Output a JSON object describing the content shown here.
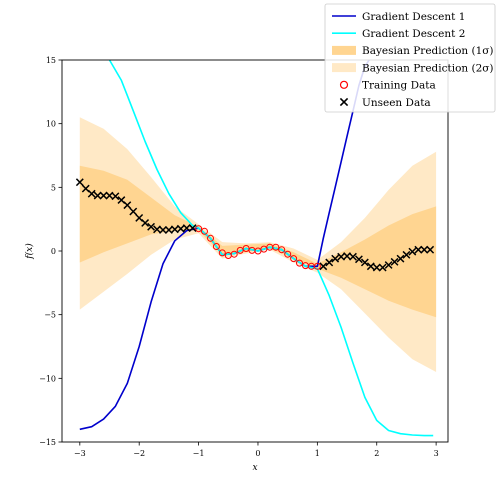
{
  "chart_data": {
    "type": "line",
    "title": "",
    "xlabel": "x",
    "ylabel": "f(x)",
    "xlim": [
      -3.3,
      3.2
    ],
    "ylim": [
      -15,
      15
    ],
    "xticks": [
      -3,
      -2,
      -1,
      0,
      1,
      2,
      3
    ],
    "xtick_labels": [
      "−3",
      "−2",
      "−1",
      "0",
      "1",
      "2",
      "3"
    ],
    "yticks": [
      -15,
      -10,
      -5,
      0,
      5,
      10,
      15
    ],
    "ytick_labels": [
      "−15",
      "−10",
      "−5",
      "0",
      "5",
      "10",
      "15"
    ],
    "grid": false,
    "legend": {
      "position": "top-right",
      "entries": [
        {
          "label": "Gradient Descent 1",
          "kind": "line",
          "color": "#0000cc"
        },
        {
          "label": "Gradient Descent 2",
          "kind": "line",
          "color": "#00ffff"
        },
        {
          "label": "Bayesian Prediction (1σ)",
          "kind": "patch",
          "color": "#ffd591"
        },
        {
          "label": "Bayesian Prediction (2σ)",
          "kind": "patch",
          "color": "#ffe9c6"
        },
        {
          "label": "Training Data",
          "kind": "circle",
          "color": "#ff0000"
        },
        {
          "label": "Unseen Data",
          "kind": "cross",
          "color": "#000000"
        }
      ]
    },
    "series": [
      {
        "name": "Gradient Descent 1",
        "color": "#0000cc",
        "x": [
          -3.0,
          -2.8,
          -2.6,
          -2.4,
          -2.2,
          -2.0,
          -1.8,
          -1.6,
          -1.4,
          -1.2,
          -1.0,
          -0.8,
          -0.6,
          -0.4,
          -0.2,
          0.0,
          0.2,
          0.4,
          0.6,
          0.8,
          1.0,
          1.1,
          1.2,
          1.3,
          1.4,
          1.5,
          1.6,
          1.7,
          1.8,
          1.9
        ],
        "y": [
          -14.0,
          -13.8,
          -13.2,
          -12.2,
          -10.4,
          -7.5,
          -4.0,
          -1.0,
          0.8,
          1.6,
          1.8,
          1.0,
          -0.3,
          -0.2,
          0.2,
          0.0,
          0.3,
          0.1,
          -0.6,
          -1.2,
          -1.2,
          1.0,
          3.0,
          5.0,
          7.0,
          9.0,
          11.0,
          13.0,
          14.5,
          15.2
        ]
      },
      {
        "name": "Gradient Descent 2",
        "color": "#00ffff",
        "x": [
          -2.5,
          -2.3,
          -2.1,
          -1.9,
          -1.7,
          -1.5,
          -1.3,
          -1.1,
          -1.0,
          -0.8,
          -0.6,
          -0.4,
          -0.2,
          0.0,
          0.2,
          0.4,
          0.6,
          0.8,
          1.0,
          1.2,
          1.4,
          1.6,
          1.8,
          2.0,
          2.2,
          2.4,
          2.6,
          2.8,
          2.95
        ],
        "y": [
          15.0,
          13.4,
          11.0,
          8.6,
          6.4,
          4.5,
          3.0,
          2.0,
          1.8,
          1.0,
          -0.3,
          -0.2,
          0.2,
          0.0,
          0.3,
          0.1,
          -0.6,
          -1.2,
          -1.4,
          -3.5,
          -6.0,
          -8.8,
          -11.5,
          -13.3,
          -14.1,
          -14.35,
          -14.45,
          -14.5,
          -14.5
        ]
      }
    ],
    "bands": [
      {
        "name": "Bayesian Prediction (2σ)",
        "color": "#ffe9c6",
        "x": [
          -3.0,
          -2.6,
          -2.2,
          -1.8,
          -1.4,
          -1.0,
          -0.6,
          -0.2,
          0.2,
          0.6,
          1.0,
          1.4,
          1.8,
          2.2,
          2.6,
          3.0
        ],
        "upper": [
          10.5,
          9.6,
          8.0,
          5.8,
          3.5,
          2.1,
          0.7,
          0.6,
          0.7,
          0.2,
          -0.7,
          0.7,
          2.6,
          4.8,
          6.7,
          7.8
        ],
        "lower": [
          -4.6,
          -3.2,
          -1.8,
          -0.3,
          0.9,
          1.4,
          -0.6,
          -0.2,
          0.1,
          -0.9,
          -1.7,
          -3.0,
          -4.9,
          -6.8,
          -8.5,
          -9.5
        ]
      },
      {
        "name": "Bayesian Prediction (1σ)",
        "color": "#ffd591",
        "x": [
          -3.0,
          -2.6,
          -2.2,
          -1.8,
          -1.4,
          -1.0,
          -0.6,
          -0.2,
          0.2,
          0.6,
          1.0,
          1.4,
          1.8,
          2.2,
          2.6,
          3.0
        ],
        "upper": [
          6.7,
          6.3,
          5.6,
          4.2,
          2.8,
          1.9,
          0.4,
          0.5,
          0.6,
          -0.1,
          -1.0,
          -0.1,
          0.9,
          2.0,
          2.9,
          3.5
        ],
        "lower": [
          -0.9,
          -0.1,
          0.6,
          1.3,
          1.6,
          1.6,
          -0.3,
          -0.1,
          0.2,
          -0.6,
          -1.4,
          -2.1,
          -3.0,
          -3.9,
          -4.6,
          -5.2
        ]
      }
    ],
    "training_data": {
      "name": "Training Data",
      "color": "#ff0000",
      "x": [
        -1.0,
        -0.9,
        -0.8,
        -0.7,
        -0.6,
        -0.5,
        -0.4,
        -0.3,
        -0.2,
        -0.1,
        0.0,
        0.1,
        0.2,
        0.3,
        0.4,
        0.5,
        0.6,
        0.7,
        0.8,
        0.9,
        1.0
      ],
      "y": [
        1.75,
        1.55,
        1.0,
        0.35,
        -0.15,
        -0.35,
        -0.25,
        0.05,
        0.2,
        0.05,
        0.0,
        0.15,
        0.3,
        0.3,
        0.1,
        -0.25,
        -0.6,
        -0.95,
        -1.15,
        -1.2,
        -1.2
      ]
    },
    "unseen_data": {
      "name": "Unseen Data",
      "color": "#000000",
      "x": [
        -3.0,
        -2.9,
        -2.8,
        -2.7,
        -2.6,
        -2.5,
        -2.4,
        -2.3,
        -2.2,
        -2.1,
        -2.0,
        -1.9,
        -1.8,
        -1.7,
        -1.6,
        -1.5,
        -1.4,
        -1.3,
        -1.2,
        -1.1,
        1.1,
        1.2,
        1.3,
        1.4,
        1.5,
        1.6,
        1.7,
        1.8,
        1.9,
        2.0,
        2.1,
        2.2,
        2.3,
        2.4,
        2.5,
        2.6,
        2.7,
        2.8,
        2.9
      ],
      "y": [
        5.4,
        4.9,
        4.5,
        4.35,
        4.35,
        4.35,
        4.3,
        4.0,
        3.6,
        3.1,
        2.6,
        2.2,
        1.9,
        1.7,
        1.65,
        1.65,
        1.7,
        1.75,
        1.8,
        1.8,
        -1.2,
        -0.9,
        -0.6,
        -0.45,
        -0.4,
        -0.45,
        -0.65,
        -0.9,
        -1.2,
        -1.3,
        -1.3,
        -1.1,
        -0.85,
        -0.6,
        -0.3,
        -0.05,
        0.1,
        0.1,
        0.1
      ]
    }
  }
}
